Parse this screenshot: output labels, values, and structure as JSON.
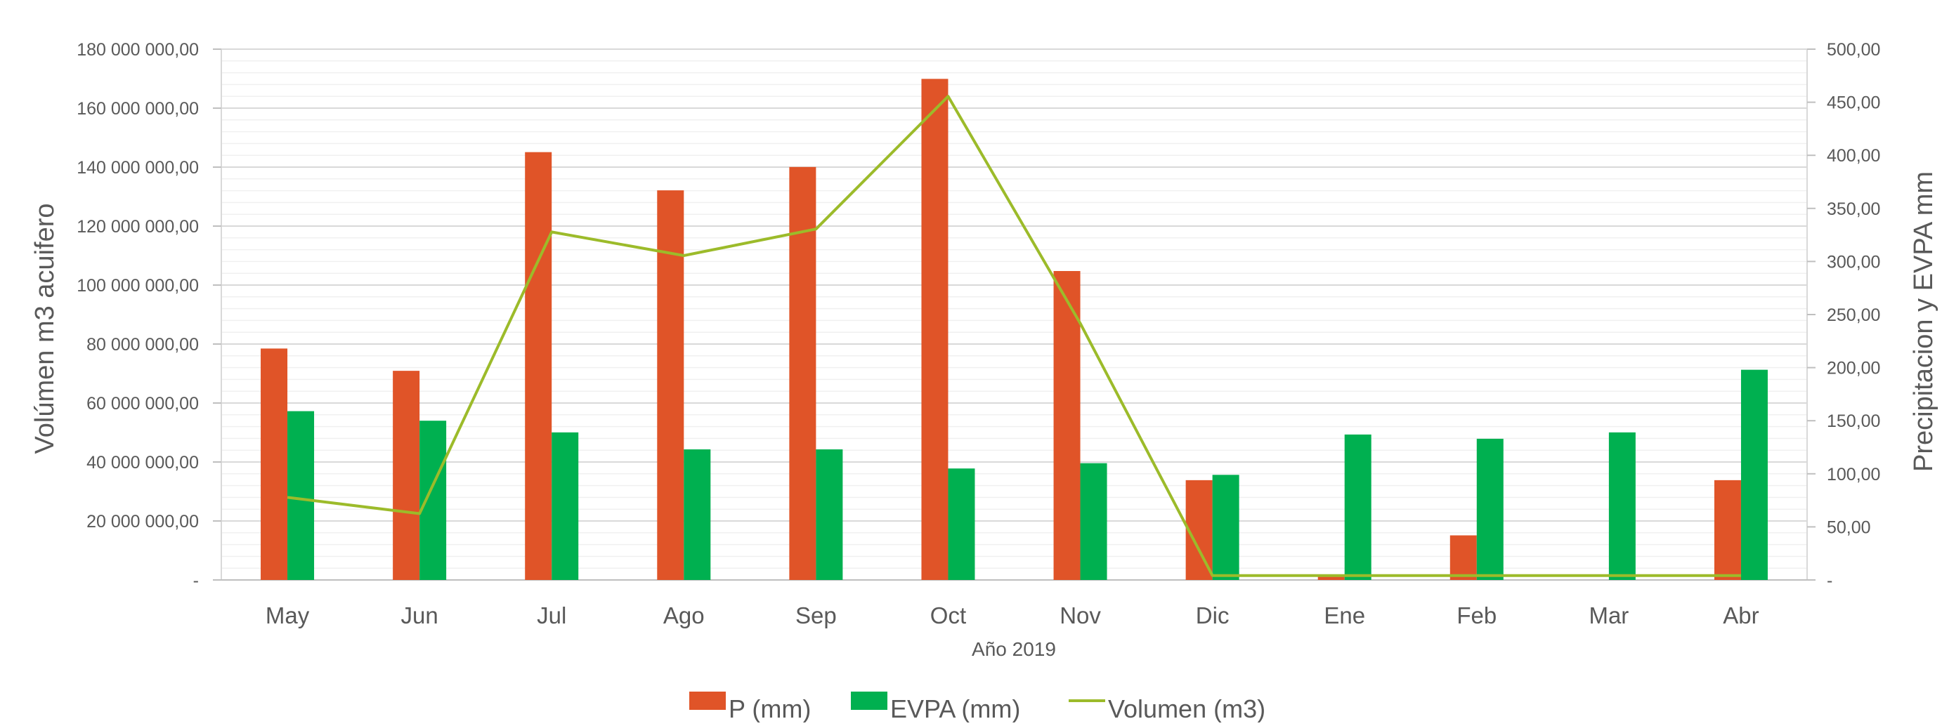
{
  "chart_data": {
    "type": "bar",
    "xlabel": "Año 2019",
    "ylabel_left": "Volúmen m3 acuifero",
    "ylabel_right": "Precipitacion y EVPA mm",
    "categories": [
      "May",
      "Jun",
      "Jul",
      "Ago",
      "Sep",
      "Oct",
      "Nov",
      "Dic",
      "Ene",
      "Feb",
      "Mar",
      "Abr"
    ],
    "ylim_left": [
      0,
      180000000
    ],
    "ylim_right": [
      0,
      500
    ],
    "left_ticks": [
      "-",
      "20 000 000,00",
      "40 000 000,00",
      "60 000 000,00",
      "80 000 000,00",
      "100 000 000,00",
      "120 000 000,00",
      "140 000 000,00",
      "160 000 000,00",
      "180 000 000,00"
    ],
    "right_ticks": [
      "-",
      "50,00",
      "100,00",
      "150,00",
      "200,00",
      "250,00",
      "300,00",
      "350,00",
      "400,00",
      "450,00",
      "500,00"
    ],
    "grid": true,
    "legend_position": "bottom",
    "series": [
      {
        "name": "P (mm)",
        "kind": "bar",
        "axis": "right",
        "color": "#E05428",
        "values": [
          218,
          197,
          403,
          367,
          389,
          472,
          291,
          94,
          3,
          42,
          0,
          94
        ]
      },
      {
        "name": "EVPA (mm)",
        "kind": "bar",
        "axis": "right",
        "color": "#00B050",
        "values": [
          159,
          150,
          139,
          123,
          123,
          105,
          110,
          99,
          137,
          133,
          139,
          198
        ]
      },
      {
        "name": "Volumen (m3)",
        "kind": "line",
        "axis": "left",
        "color": "#9CBB2A",
        "values": [
          28000000,
          22500000,
          118000000,
          110000000,
          119000000,
          164000000,
          87000000,
          1500000,
          1500000,
          1500000,
          1500000,
          1500000
        ]
      }
    ]
  }
}
